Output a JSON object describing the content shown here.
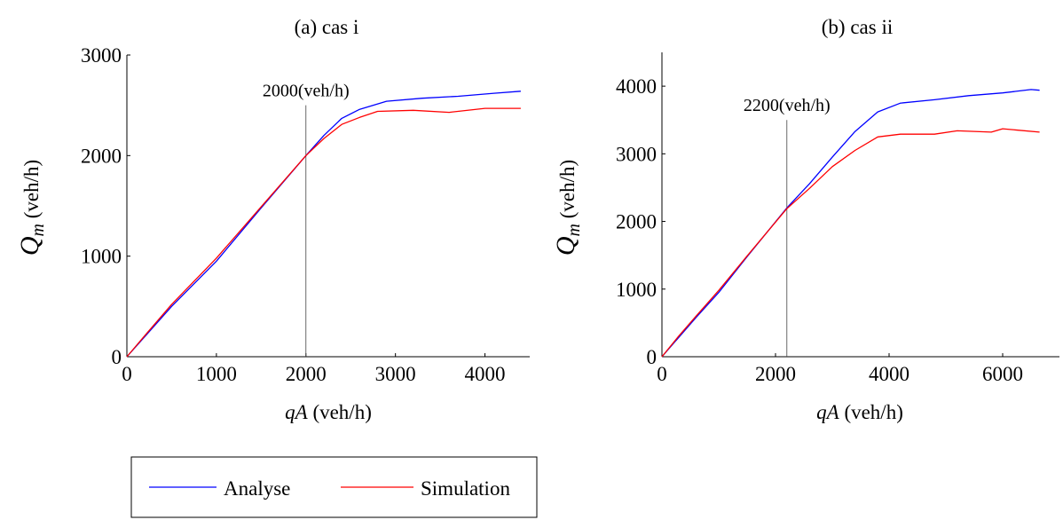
{
  "legend": {
    "entries": [
      {
        "label": "Analyse",
        "color": "#0000ff"
      },
      {
        "label": "Simulation",
        "color": "#ff0000"
      }
    ],
    "placement": "bottom-left"
  },
  "chart_data": [
    {
      "type": "line",
      "title": "(a) cas i",
      "xlabel": "qA (veh/h)",
      "ylabel": "Q_m (veh/h)",
      "xlim": [
        0,
        4500
      ],
      "ylim": [
        0,
        3000
      ],
      "xticks": [
        0,
        1000,
        2000,
        3000,
        4000
      ],
      "yticks": [
        0,
        1000,
        2000,
        3000
      ],
      "grid": false,
      "annotation": {
        "x": 2000,
        "label": "2000(veh/h)"
      },
      "series": [
        {
          "name": "Analyse",
          "color": "#0000ff",
          "x": [
            0,
            200,
            500,
            1000,
            1500,
            2000,
            2200,
            2400,
            2600,
            2900,
            3300,
            3700,
            4100,
            4400
          ],
          "y": [
            0,
            200,
            500,
            950,
            1480,
            2000,
            2200,
            2370,
            2460,
            2540,
            2570,
            2590,
            2620,
            2640
          ]
        },
        {
          "name": "Simulation",
          "color": "#ff0000",
          "x": [
            0,
            200,
            500,
            1000,
            1500,
            2000,
            2200,
            2400,
            2600,
            2800,
            3200,
            3600,
            4000,
            4400
          ],
          "y": [
            0,
            210,
            520,
            980,
            1490,
            2000,
            2170,
            2310,
            2380,
            2440,
            2450,
            2430,
            2470,
            2470
          ]
        }
      ]
    },
    {
      "type": "line",
      "title": "(b) cas ii",
      "xlabel": "qA (veh/h)",
      "ylabel": "Q_m (veh/h)",
      "xlim": [
        0,
        7000
      ],
      "ylim": [
        0,
        4500
      ],
      "xticks": [
        0,
        2000,
        4000,
        6000
      ],
      "yticks": [
        0,
        1000,
        2000,
        3000,
        4000
      ],
      "grid": false,
      "annotation": {
        "x": 2200,
        "label": "2200(veh/h)"
      },
      "series": [
        {
          "name": "Analyse",
          "color": "#0000ff",
          "x": [
            0,
            300,
            600,
            1000,
            1500,
            2200,
            2600,
            3000,
            3400,
            3800,
            4200,
            4800,
            5400,
            6000,
            6500,
            6650
          ],
          "y": [
            0,
            290,
            580,
            950,
            1480,
            2200,
            2560,
            2950,
            3330,
            3620,
            3750,
            3800,
            3860,
            3900,
            3950,
            3940
          ]
        },
        {
          "name": "Simulation",
          "color": "#ff0000",
          "x": [
            0,
            300,
            600,
            1000,
            1500,
            2200,
            2600,
            3000,
            3400,
            3800,
            4200,
            4800,
            5200,
            5800,
            6000,
            6650
          ],
          "y": [
            0,
            310,
            600,
            980,
            1490,
            2190,
            2490,
            2810,
            3050,
            3250,
            3290,
            3290,
            3340,
            3320,
            3370,
            3320
          ]
        }
      ]
    }
  ]
}
